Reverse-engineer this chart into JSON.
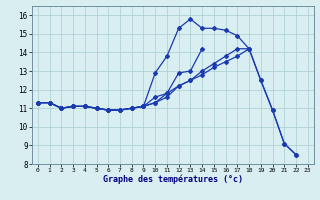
{
  "xlabel": "Graphe des températures (°c)",
  "hours": [
    0,
    1,
    2,
    3,
    4,
    5,
    6,
    7,
    8,
    9,
    10,
    11,
    12,
    13,
    14,
    15,
    16,
    17,
    18,
    19,
    20,
    21,
    22,
    23
  ],
  "line1": [
    11.3,
    11.3,
    11.0,
    11.1,
    11.1,
    11.0,
    10.9,
    10.9,
    11.0,
    11.1,
    12.9,
    13.8,
    15.3,
    15.8,
    15.3,
    15.3,
    15.2,
    14.9,
    14.2,
    12.5,
    10.9,
    9.1,
    8.5,
    null
  ],
  "line2": [
    11.3,
    11.3,
    11.0,
    11.1,
    11.1,
    11.0,
    10.9,
    10.9,
    11.0,
    11.1,
    11.6,
    11.8,
    12.9,
    13.0,
    14.2,
    null,
    null,
    null,
    null,
    null,
    null,
    null,
    null,
    null
  ],
  "line3": [
    11.3,
    11.3,
    11.0,
    11.1,
    11.1,
    11.0,
    10.9,
    10.9,
    11.0,
    11.1,
    11.3,
    11.6,
    12.2,
    12.5,
    12.8,
    13.2,
    13.5,
    13.8,
    14.2,
    null,
    null,
    null,
    null,
    null
  ],
  "line4": [
    11.3,
    11.3,
    11.0,
    11.1,
    11.1,
    11.0,
    10.9,
    10.9,
    11.0,
    11.1,
    11.3,
    11.8,
    12.2,
    12.5,
    13.0,
    13.4,
    13.8,
    14.2,
    14.2,
    12.5,
    10.9,
    9.1,
    8.5,
    null
  ],
  "ylim": [
    8,
    16.5
  ],
  "yticks": [
    8,
    9,
    10,
    11,
    12,
    13,
    14,
    15,
    16
  ],
  "bg_color": "#d8eef0",
  "line_color": "#1a3ab0",
  "grid_color": "#aaccd0"
}
